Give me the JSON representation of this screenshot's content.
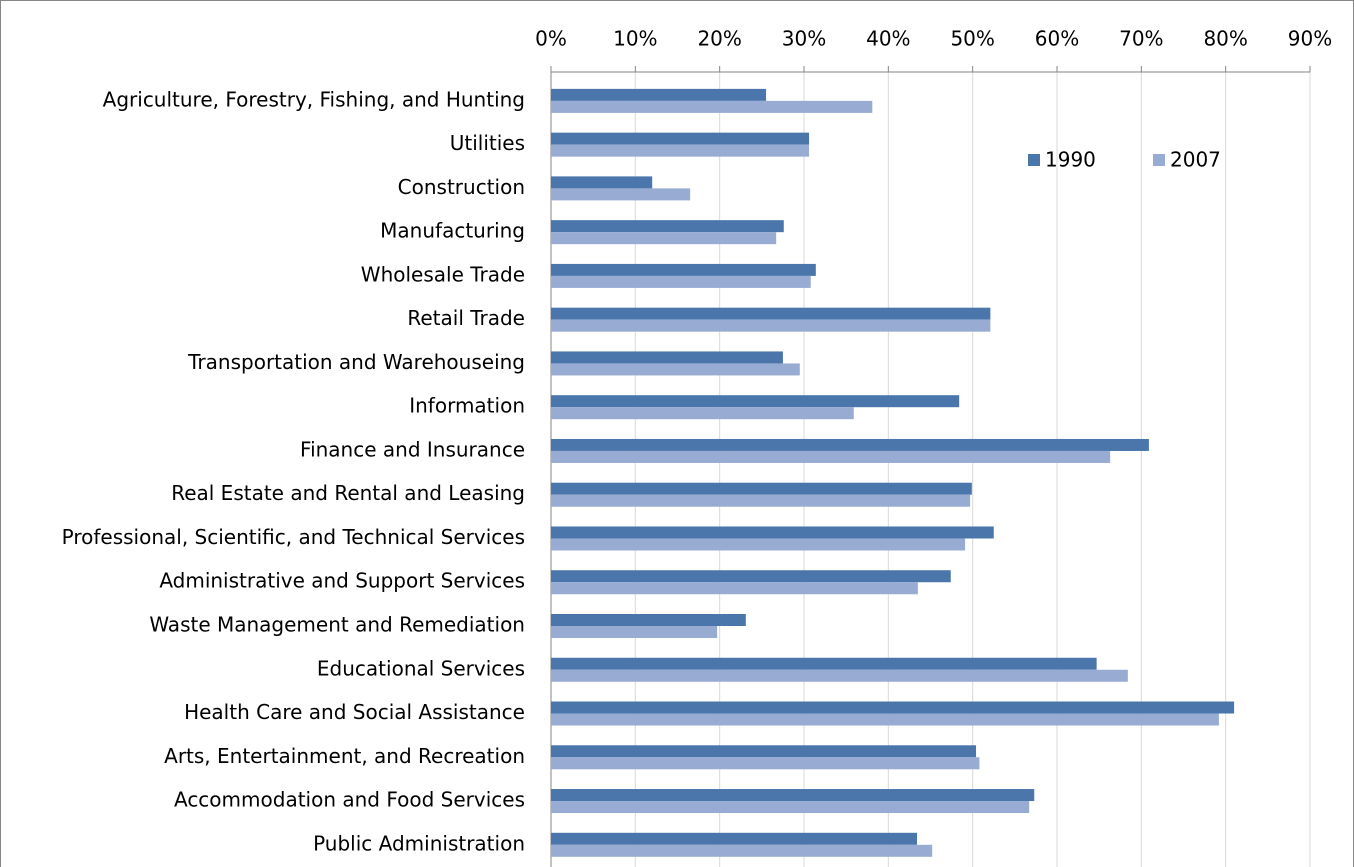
{
  "chart_data": {
    "type": "hbar",
    "categories": [
      "Agriculture, Forestry, Fishing, and Hunting",
      "Utilities",
      "Construction",
      "Manufacturing",
      "Wholesale Trade",
      "Retail Trade",
      "Transportation and Warehouseing",
      "Information",
      "Finance and Insurance",
      "Real Estate and Rental and Leasing",
      "Professional, Scientific, and Technical Services",
      "Administrative and Support Services",
      "Waste Management and Remediation",
      "Educational Services",
      "Health Care and Social Assistance",
      "Arts, Entertainment, and Recreation",
      "Accommodation and Food Services",
      "Public Administration"
    ],
    "series": [
      {
        "name": "1990",
        "color": "#4a76ab",
        "values": [
          25.5,
          30.6,
          12.0,
          27.6,
          31.4,
          52.1,
          27.5,
          48.4,
          70.9,
          49.9,
          52.5,
          47.4,
          23.1,
          64.7,
          81.0,
          50.4,
          57.3,
          43.4
        ]
      },
      {
        "name": "2007",
        "color": "#98abd3",
        "values": [
          38.1,
          30.6,
          16.5,
          26.7,
          30.8,
          52.1,
          29.5,
          35.9,
          66.3,
          49.7,
          49.1,
          43.5,
          19.7,
          68.4,
          79.2,
          50.8,
          56.7,
          45.2
        ]
      }
    ],
    "xlim": [
      0,
      90
    ],
    "xticks": [
      {
        "value": 0,
        "label": "0%"
      },
      {
        "value": 10,
        "label": "10%"
      },
      {
        "value": 20,
        "label": "20%"
      },
      {
        "value": 30,
        "label": "30%"
      },
      {
        "value": 40,
        "label": "40%"
      },
      {
        "value": 50,
        "label": "50%"
      },
      {
        "value": 60,
        "label": "60%"
      },
      {
        "value": 70,
        "label": "70%"
      },
      {
        "value": 80,
        "label": "80%"
      },
      {
        "value": 90,
        "label": "90%"
      }
    ],
    "grid": true,
    "legend": "upper-right"
  }
}
